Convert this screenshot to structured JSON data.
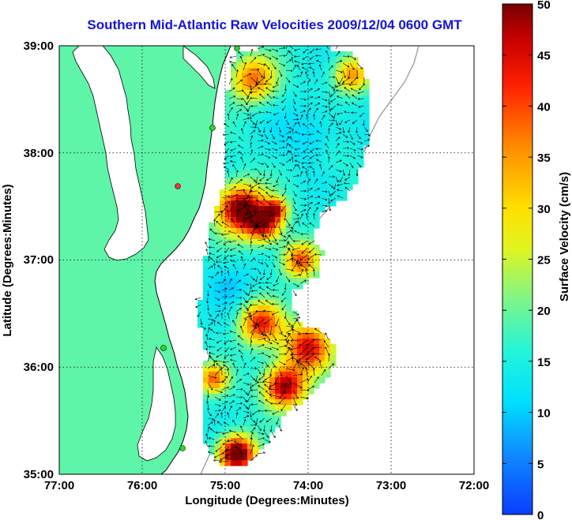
{
  "title": "Southern Mid-Atlantic Raw Velocities 2009/12/04 0600 GMT",
  "x_axis": {
    "label": "Longitude (Degrees:Minutes)",
    "ticks": [
      "77:00",
      "76:00",
      "75:00",
      "74:00",
      "73:00",
      "72:00"
    ]
  },
  "y_axis": {
    "label": "Latitude (Degrees:Minutes)",
    "ticks": [
      "39:00",
      "38:00",
      "37:00",
      "36:00",
      "35:00"
    ]
  },
  "colorbar": {
    "label": "Surface Velocity (cm/s)",
    "min": 0,
    "max": 50,
    "ticks": [
      "50",
      "45",
      "40",
      "35",
      "30",
      "25",
      "20",
      "15",
      "10",
      "5",
      "0"
    ]
  },
  "map": {
    "lon_range": [
      -77,
      -72
    ],
    "lat_range": [
      35,
      39
    ],
    "land_color": "#5ff5a8",
    "water_color": "#ffffff",
    "station_color": "#22dd22",
    "highlight_station_color": "#ff3333"
  }
}
